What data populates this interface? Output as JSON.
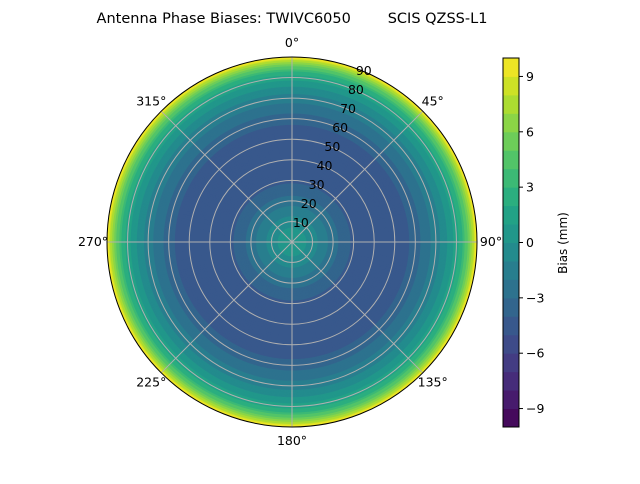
{
  "chart_data": {
    "type": "polar-contour",
    "title": "Antenna Phase Biases: TWIVC6050        SCIS QZSS-L1",
    "angular_ticks": [
      "0°",
      "45°",
      "90°",
      "135°",
      "180°",
      "225°",
      "270°",
      "315°"
    ],
    "angular_direction": "clockwise, 0° at top",
    "radial_ticks": [
      "10",
      "20",
      "30",
      "40",
      "50",
      "60",
      "70",
      "80",
      "90"
    ],
    "radial_range": [
      0,
      90
    ],
    "grid": true,
    "colormap": "viridis",
    "colorbar": {
      "label": "Bias (mm)",
      "range": [
        -10,
        10
      ],
      "levels_step": 1,
      "ticks": [
        "−9",
        "−6",
        "−3",
        "0",
        "3",
        "6",
        "9"
      ],
      "tick_values": [
        -9,
        -6,
        -3,
        0,
        3,
        6,
        9
      ],
      "placement": "right"
    },
    "radial_profile": {
      "zenith_deg": [
        0,
        5,
        10,
        15,
        20,
        25,
        30,
        40,
        50,
        55,
        60,
        65,
        70,
        75,
        80,
        83,
        86,
        88,
        90
      ],
      "bias_mm": [
        0.5,
        0.3,
        -0.5,
        -1.5,
        -2.5,
        -3.5,
        -4.2,
        -4.6,
        -4.6,
        -4.3,
        -3.5,
        -2.5,
        -1.5,
        -0.2,
        1.5,
        3,
        5.5,
        7.5,
        10
      ]
    }
  }
}
